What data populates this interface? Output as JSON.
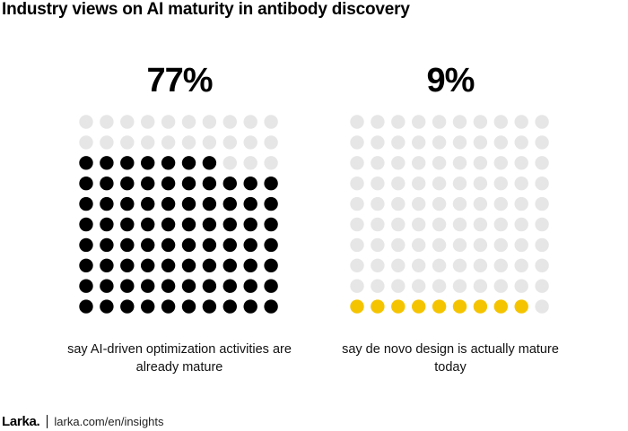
{
  "title": "Industry views on AI maturity in antibody discovery",
  "colors": {
    "inactive": "#e6e6e6",
    "left_active": "#000000",
    "right_active": "#f5c400"
  },
  "chart_data": [
    {
      "type": "waffle",
      "total": 100,
      "value": 77,
      "value_label": "77%",
      "caption": "say AI-driven optimization activities are already mature",
      "active_color": "#000000"
    },
    {
      "type": "waffle",
      "total": 100,
      "value": 9,
      "value_label": "9%",
      "caption": "say de novo design is actually mature today",
      "active_color": "#f5c400"
    }
  ],
  "footer": {
    "logo": "Larka.",
    "source": "larka.com/en/insights"
  }
}
